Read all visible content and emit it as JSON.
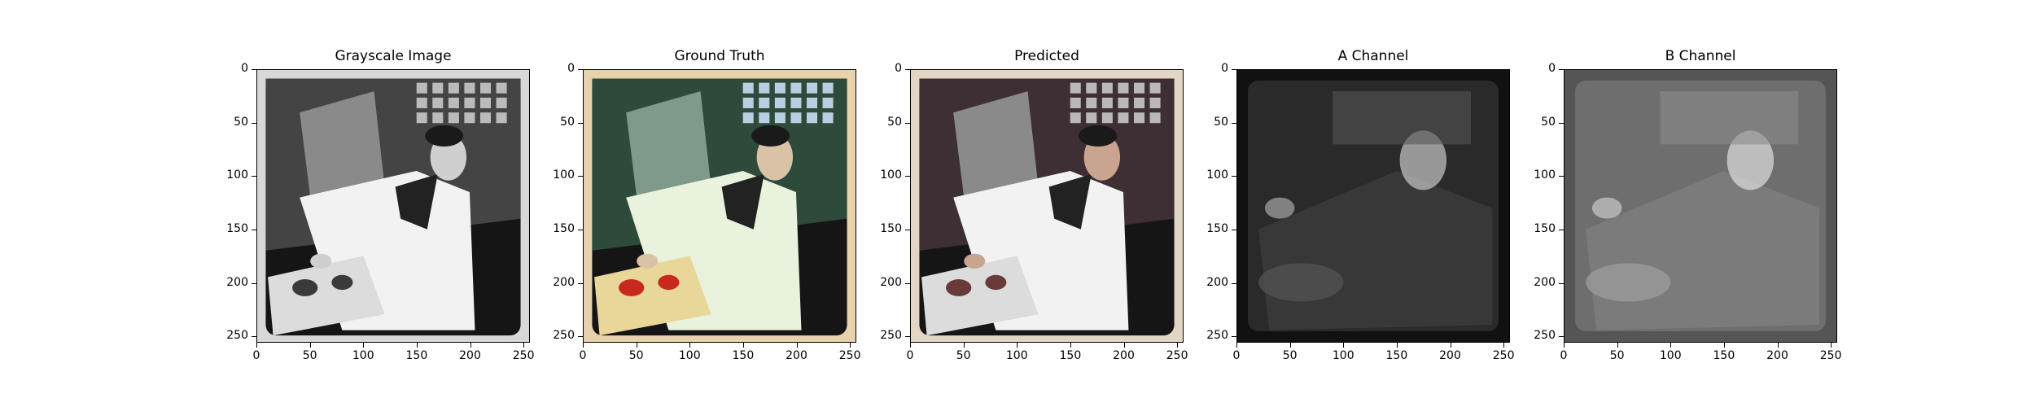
{
  "panels": [
    {
      "title": "Grayscale Image",
      "mode": "gray"
    },
    {
      "title": "Ground Truth",
      "mode": "color"
    },
    {
      "title": "Predicted",
      "mode": "pred"
    },
    {
      "title": "A Channel",
      "mode": "achan"
    },
    {
      "title": "B Channel",
      "mode": "bchan"
    }
  ],
  "x_ticks": [
    "0",
    "50",
    "100",
    "150",
    "200",
    "250"
  ],
  "y_ticks": [
    "0",
    "50",
    "100",
    "150",
    "200",
    "250"
  ],
  "x_tick_values": [
    0,
    50,
    100,
    150,
    200,
    250
  ],
  "y_tick_values": [
    0,
    50,
    100,
    150,
    200,
    250
  ],
  "axis_range": [
    0,
    256
  ],
  "colors": {
    "frame_gray": "#d8d8d8",
    "frame_cream": "#e8d2ac",
    "dark_inner": "#151515",
    "coat": "#f2f2f2",
    "coat_green": "#e8f2dc",
    "tomato": "#c8281e",
    "channel_bg": "#2a2a2a",
    "channel_b_bg": "#6e6e6e"
  }
}
